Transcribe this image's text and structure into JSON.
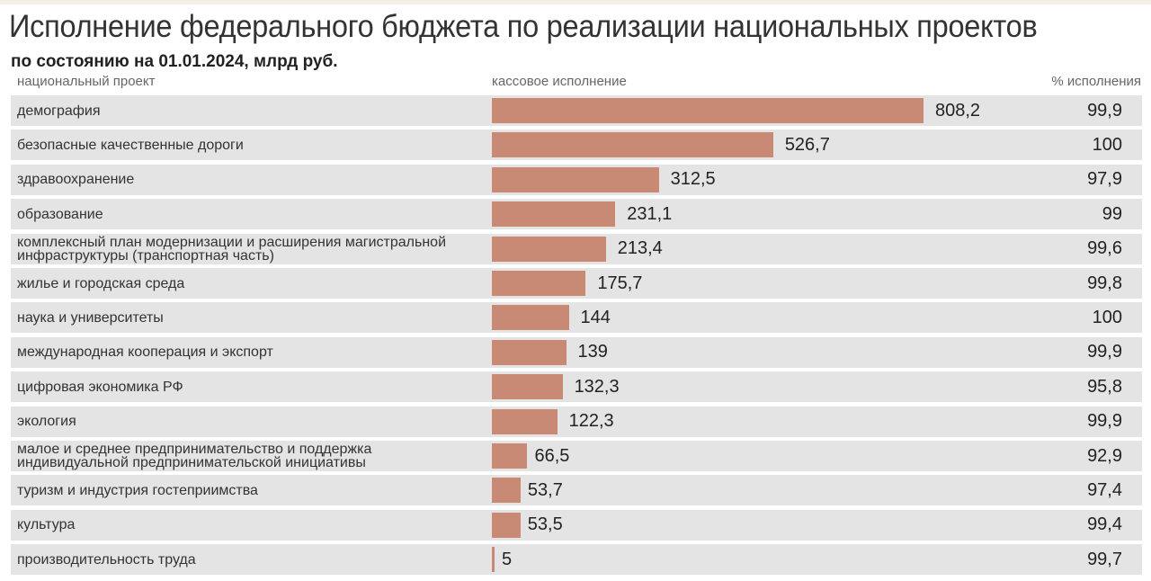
{
  "chart_data": {
    "type": "bar",
    "orientation": "horizontal",
    "title": "Исполнение федерального бюджета по реализации национальных проектов",
    "subtitle": "по состоянию на 01.01.2024, млрд руб.",
    "columns": [
      "национальный проект",
      "кассовое исполнение",
      "% исполнения"
    ],
    "bar_color": "#c98a75",
    "rows": [
      {
        "name": "демография",
        "value": 808.2,
        "value_label": "808,2",
        "pct": "99,9"
      },
      {
        "name": "безопасные качественные дороги",
        "value": 526.7,
        "value_label": "526,7",
        "pct": "100"
      },
      {
        "name": "здравоохранение",
        "value": 312.5,
        "value_label": "312,5",
        "pct": "97,9"
      },
      {
        "name": "образование",
        "value": 231.1,
        "value_label": "231,1",
        "pct": "99"
      },
      {
        "name": "комплексный план модернизации и расширения магистральной инфраструктуры (транспортная часть)",
        "value": 213.4,
        "value_label": "213,4",
        "pct": "99,6"
      },
      {
        "name": "жилье и городская среда",
        "value": 175.7,
        "value_label": "175,7",
        "pct": "99,8"
      },
      {
        "name": "наука и университеты",
        "value": 144,
        "value_label": "144",
        "pct": "100"
      },
      {
        "name": "международная кооперация и экспорт",
        "value": 139,
        "value_label": "139",
        "pct": "99,9"
      },
      {
        "name": "цифровая экономика РФ",
        "value": 132.3,
        "value_label": "132,3",
        "pct": "95,8"
      },
      {
        "name": "экология",
        "value": 122.3,
        "value_label": "122,3",
        "pct": "99,9"
      },
      {
        "name": "малое и среднее предпринимательство и поддержка индивидуальной предпринимательской инициативы",
        "value": 66.5,
        "value_label": "66,5",
        "pct": "92,9"
      },
      {
        "name": "туризм и индустрия гостеприимства",
        "value": 53.7,
        "value_label": "53,7",
        "pct": "97,4"
      },
      {
        "name": "культура",
        "value": 53.5,
        "value_label": "53,5",
        "pct": "99,4"
      },
      {
        "name": "производительность труда",
        "value": 5,
        "value_label": "5",
        "pct": "99,7"
      }
    ],
    "xlim": [
      0,
      808.2
    ]
  }
}
